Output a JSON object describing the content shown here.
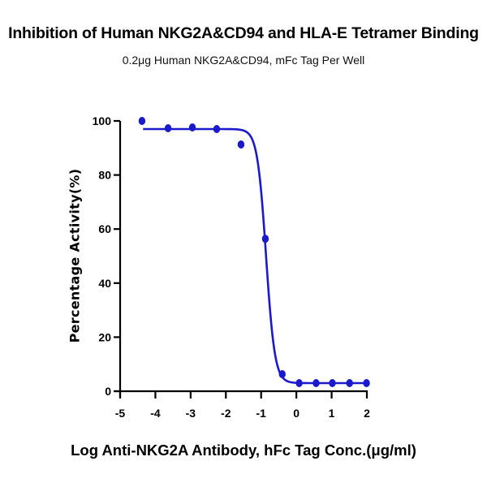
{
  "chart_data": {
    "type": "scatter",
    "title": "Inhibition of Human NKG2A&CD94 and HLA-E Tetramer Binding",
    "subtitle": "0.2μg Human NKG2A&CD94, mFc Tag Per Well",
    "xlabel": "Log Anti-NKG2A Antibody, hFc Tag Conc.(μg/ml)",
    "ylabel": "Percentage Activity(%)",
    "xlim": [
      -5,
      2
    ],
    "ylim": [
      0,
      100
    ],
    "x_ticks": [
      -5,
      -4,
      -3,
      -2,
      -1,
      0,
      1,
      2
    ],
    "y_ticks": [
      0,
      20,
      40,
      60,
      80,
      100
    ],
    "grid": false,
    "legend": null,
    "color": "#1a1acc",
    "series": [
      {
        "name": "Data points",
        "x": [
          -4.38,
          -3.64,
          -2.95,
          -2.26,
          -1.57,
          -0.88,
          -0.4,
          0.08,
          0.56,
          1.02,
          1.51,
          1.99
        ],
        "y": [
          100.0,
          97.3,
          97.6,
          97.0,
          91.3,
          56.4,
          6.3,
          3.0,
          3.0,
          3.0,
          3.0,
          3.0
        ]
      }
    ],
    "fit": {
      "model": "4PL",
      "top": 97,
      "bottom": 3,
      "logIC50": -0.86,
      "hill": 3.5,
      "x_range": [
        -4.35,
        1.99
      ]
    }
  }
}
